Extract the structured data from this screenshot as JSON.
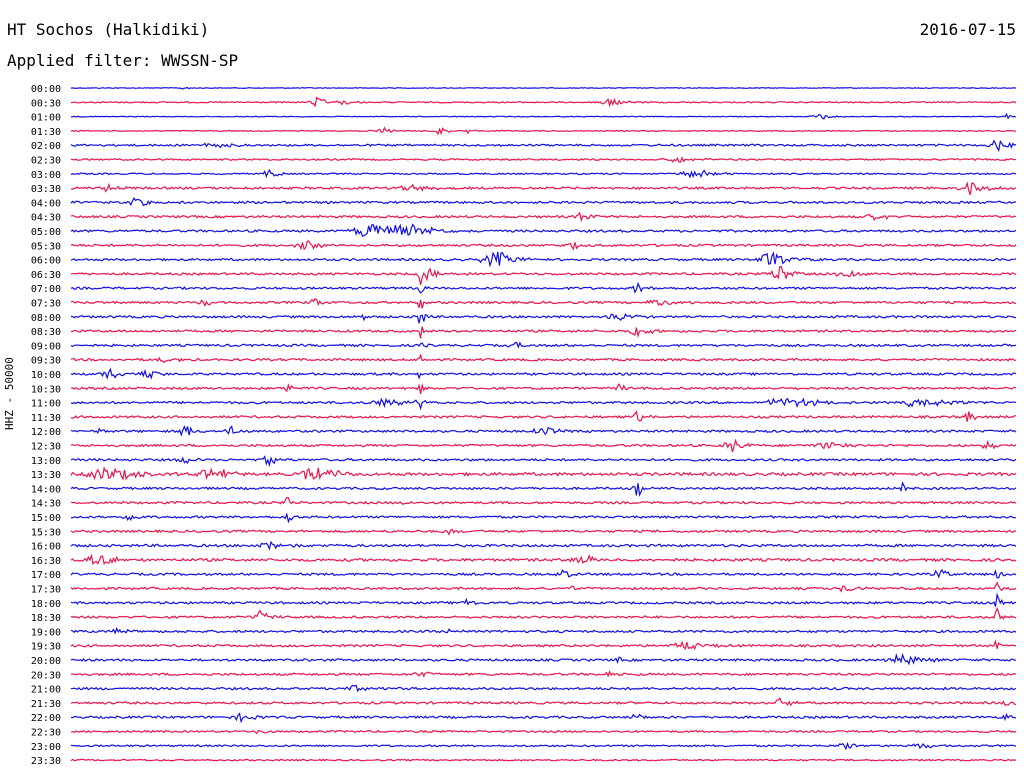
{
  "header": {
    "station": "HT Sochos (Halkidiki)",
    "date": "2016-07-15",
    "filter": "Applied filter: WWSSN-SP"
  },
  "axis": {
    "ylabel": "HHZ - 50000"
  },
  "colors": {
    "trace_a": "#1010e0",
    "trace_b": "#e8154a",
    "text": "#000000",
    "background": "#ffffff"
  },
  "chart_data": {
    "type": "line",
    "title": "HT Sochos (Halkidiki)",
    "subtitle": "Applied filter: WWSSN-SP",
    "ylabel": "HHZ - 50000",
    "grid": false,
    "rows": [
      {
        "time": "00:00",
        "color": "blue",
        "noise": 0.6,
        "events": [
          {
            "at": 0.12,
            "amp": 4,
            "w": 0.004
          }
        ]
      },
      {
        "time": "00:30",
        "color": "red",
        "noise": 1.0,
        "events": [
          {
            "at": 0.26,
            "amp": 5,
            "w": 0.012
          },
          {
            "at": 0.29,
            "amp": 3,
            "w": 0.01
          },
          {
            "at": 0.57,
            "amp": 4,
            "w": 0.015
          }
        ]
      },
      {
        "time": "01:00",
        "color": "blue",
        "noise": 0.6,
        "events": [
          {
            "at": 0.79,
            "amp": 5,
            "w": 0.01
          },
          {
            "at": 0.99,
            "amp": 3,
            "w": 0.004
          }
        ]
      },
      {
        "time": "01:30",
        "color": "red",
        "noise": 0.8,
        "events": [
          {
            "at": 0.33,
            "amp": 4,
            "w": 0.008
          },
          {
            "at": 0.39,
            "amp": 5,
            "w": 0.008
          },
          {
            "at": 0.42,
            "amp": 3,
            "w": 0.006
          }
        ]
      },
      {
        "time": "02:00",
        "color": "blue",
        "noise": 1.6,
        "events": [
          {
            "at": 0.15,
            "amp": 3,
            "w": 0.02
          },
          {
            "at": 0.98,
            "amp": 6,
            "w": 0.012
          }
        ]
      },
      {
        "time": "02:30",
        "color": "red",
        "noise": 1.3,
        "events": [
          {
            "at": 0.64,
            "amp": 3,
            "w": 0.02
          }
        ]
      },
      {
        "time": "03:00",
        "color": "blue",
        "noise": 1.2,
        "events": [
          {
            "at": 0.21,
            "amp": 6,
            "w": 0.008
          },
          {
            "at": 0.66,
            "amp": 5,
            "w": 0.02
          }
        ]
      },
      {
        "time": "03:30",
        "color": "red",
        "noise": 1.8,
        "events": [
          {
            "at": 0.04,
            "amp": 6,
            "w": 0.008
          },
          {
            "at": 0.36,
            "amp": 4,
            "w": 0.02
          },
          {
            "at": 0.95,
            "amp": 7,
            "w": 0.02
          }
        ]
      },
      {
        "time": "04:00",
        "color": "blue",
        "noise": 1.8,
        "events": [
          {
            "at": 0.07,
            "amp": 4,
            "w": 0.02
          }
        ]
      },
      {
        "time": "04:30",
        "color": "red",
        "noise": 1.8,
        "events": [
          {
            "at": 0.54,
            "amp": 6,
            "w": 0.008
          },
          {
            "at": 0.85,
            "amp": 4,
            "w": 0.012
          }
        ]
      },
      {
        "time": "05:00",
        "color": "blue",
        "noise": 1.8,
        "events": [
          {
            "at": 0.32,
            "amp": 9,
            "w": 0.03
          },
          {
            "at": 0.36,
            "amp": 6,
            "w": 0.03
          }
        ]
      },
      {
        "time": "05:30",
        "color": "red",
        "noise": 1.8,
        "events": [
          {
            "at": 0.25,
            "amp": 4,
            "w": 0.02
          },
          {
            "at": 0.53,
            "amp": 4,
            "w": 0.01
          }
        ]
      },
      {
        "time": "06:00",
        "color": "blue",
        "noise": 1.8,
        "events": [
          {
            "at": 0.45,
            "amp": 9,
            "w": 0.02
          },
          {
            "at": 0.74,
            "amp": 8,
            "w": 0.02
          }
        ]
      },
      {
        "time": "06:30",
        "color": "red",
        "noise": 1.8,
        "events": [
          {
            "at": 0.37,
            "amp": 14,
            "w": 0.004
          },
          {
            "at": 0.38,
            "amp": 7,
            "w": 0.012
          },
          {
            "at": 0.75,
            "amp": 10,
            "w": 0.012
          },
          {
            "at": 0.82,
            "amp": 6,
            "w": 0.015
          }
        ]
      },
      {
        "time": "07:00",
        "color": "blue",
        "noise": 1.8,
        "events": [
          {
            "at": 0.37,
            "amp": 12,
            "w": 0.003
          },
          {
            "at": 0.6,
            "amp": 7,
            "w": 0.008
          }
        ]
      },
      {
        "time": "07:30",
        "color": "red",
        "noise": 1.8,
        "events": [
          {
            "at": 0.14,
            "amp": 5,
            "w": 0.008
          },
          {
            "at": 0.26,
            "amp": 5,
            "w": 0.008
          },
          {
            "at": 0.37,
            "amp": 12,
            "w": 0.003
          },
          {
            "at": 0.62,
            "amp": 4,
            "w": 0.02
          }
        ]
      },
      {
        "time": "08:00",
        "color": "blue",
        "noise": 1.8,
        "events": [
          {
            "at": 0.31,
            "amp": 7,
            "w": 0.003
          },
          {
            "at": 0.37,
            "amp": 14,
            "w": 0.004
          },
          {
            "at": 0.58,
            "amp": 4,
            "w": 0.02
          }
        ]
      },
      {
        "time": "08:30",
        "color": "red",
        "noise": 1.8,
        "events": [
          {
            "at": 0.37,
            "amp": 8,
            "w": 0.004
          },
          {
            "at": 0.6,
            "amp": 7,
            "w": 0.01
          }
        ]
      },
      {
        "time": "09:00",
        "color": "blue",
        "noise": 1.8,
        "events": [
          {
            "at": 0.37,
            "amp": 10,
            "w": 0.003
          },
          {
            "at": 0.47,
            "amp": 4,
            "w": 0.008
          }
        ]
      },
      {
        "time": "09:30",
        "color": "red",
        "noise": 1.8,
        "events": [
          {
            "at": 0.37,
            "amp": 8,
            "w": 0.003
          },
          {
            "at": 0.1,
            "amp": 3,
            "w": 0.02
          }
        ]
      },
      {
        "time": "10:00",
        "color": "blue",
        "noise": 1.8,
        "events": [
          {
            "at": 0.04,
            "amp": 7,
            "w": 0.01
          },
          {
            "at": 0.08,
            "amp": 5,
            "w": 0.012
          },
          {
            "at": 0.37,
            "amp": 8,
            "w": 0.003
          }
        ]
      },
      {
        "time": "10:30",
        "color": "red",
        "noise": 1.8,
        "events": [
          {
            "at": 0.23,
            "amp": 8,
            "w": 0.004
          },
          {
            "at": 0.37,
            "amp": 6,
            "w": 0.003
          },
          {
            "at": 0.58,
            "amp": 4,
            "w": 0.01
          }
        ]
      },
      {
        "time": "11:00",
        "color": "blue",
        "noise": 1.8,
        "events": [
          {
            "at": 0.33,
            "amp": 5,
            "w": 0.02
          },
          {
            "at": 0.37,
            "amp": 6,
            "w": 0.01
          },
          {
            "at": 0.76,
            "amp": 6,
            "w": 0.03
          },
          {
            "at": 0.9,
            "amp": 6,
            "w": 0.03
          }
        ]
      },
      {
        "time": "11:30",
        "color": "red",
        "noise": 1.8,
        "events": [
          {
            "at": 0.6,
            "amp": 6,
            "w": 0.01
          },
          {
            "at": 0.95,
            "amp": 5,
            "w": 0.01
          }
        ]
      },
      {
        "time": "12:00",
        "color": "blue",
        "noise": 1.8,
        "events": [
          {
            "at": 0.03,
            "amp": 6,
            "w": 0.003
          },
          {
            "at": 0.12,
            "amp": 7,
            "w": 0.01
          },
          {
            "at": 0.17,
            "amp": 5,
            "w": 0.01
          },
          {
            "at": 0.5,
            "amp": 4,
            "w": 0.02
          }
        ]
      },
      {
        "time": "12:30",
        "color": "red",
        "noise": 1.8,
        "events": [
          {
            "at": 0.7,
            "amp": 7,
            "w": 0.012
          },
          {
            "at": 0.8,
            "amp": 4,
            "w": 0.02
          },
          {
            "at": 0.97,
            "amp": 5,
            "w": 0.008
          }
        ]
      },
      {
        "time": "13:00",
        "color": "blue",
        "noise": 1.8,
        "events": [
          {
            "at": 0.12,
            "amp": 4,
            "w": 0.01
          },
          {
            "at": 0.21,
            "amp": 7,
            "w": 0.008
          }
        ]
      },
      {
        "time": "13:30",
        "color": "red",
        "noise": 2.4,
        "events": [
          {
            "at": 0.04,
            "amp": 8,
            "w": 0.03
          },
          {
            "at": 0.15,
            "amp": 7,
            "w": 0.02
          },
          {
            "at": 0.26,
            "amp": 10,
            "w": 0.02
          }
        ]
      },
      {
        "time": "14:00",
        "color": "blue",
        "noise": 1.8,
        "events": [
          {
            "at": 0.6,
            "amp": 8,
            "w": 0.008
          },
          {
            "at": 0.88,
            "amp": 6,
            "w": 0.003
          }
        ]
      },
      {
        "time": "14:30",
        "color": "red",
        "noise": 1.8,
        "events": [
          {
            "at": 0.23,
            "amp": 7,
            "w": 0.005
          },
          {
            "at": 0.35,
            "amp": 6,
            "w": 0.004
          }
        ]
      },
      {
        "time": "15:00",
        "color": "blue",
        "noise": 1.8,
        "events": [
          {
            "at": 0.06,
            "amp": 5,
            "w": 0.01
          },
          {
            "at": 0.23,
            "amp": 6,
            "w": 0.006
          }
        ]
      },
      {
        "time": "15:30",
        "color": "red",
        "noise": 1.8,
        "events": [
          {
            "at": 0.4,
            "amp": 4,
            "w": 0.008
          }
        ]
      },
      {
        "time": "16:00",
        "color": "blue",
        "noise": 2.0,
        "events": [
          {
            "at": 0.21,
            "amp": 5,
            "w": 0.015
          }
        ]
      },
      {
        "time": "16:30",
        "color": "red",
        "noise": 2.2,
        "events": [
          {
            "at": 0.03,
            "amp": 6,
            "w": 0.02
          },
          {
            "at": 0.54,
            "amp": 5,
            "w": 0.02
          }
        ]
      },
      {
        "time": "17:00",
        "color": "blue",
        "noise": 1.8,
        "events": [
          {
            "at": 0.52,
            "amp": 5,
            "w": 0.01
          },
          {
            "at": 0.92,
            "amp": 5,
            "w": 0.01
          },
          {
            "at": 0.98,
            "amp": 6,
            "w": 0.006
          }
        ]
      },
      {
        "time": "17:30",
        "color": "red",
        "noise": 1.8,
        "events": [
          {
            "at": 0.53,
            "amp": 7,
            "w": 0.003
          },
          {
            "at": 0.82,
            "amp": 4,
            "w": 0.01
          },
          {
            "at": 0.98,
            "amp": 10,
            "w": 0.003
          }
        ]
      },
      {
        "time": "18:00",
        "color": "blue",
        "noise": 1.8,
        "events": [
          {
            "at": 0.42,
            "amp": 4,
            "w": 0.01
          },
          {
            "at": 0.98,
            "amp": 9,
            "w": 0.004
          }
        ]
      },
      {
        "time": "18:30",
        "color": "red",
        "noise": 1.8,
        "events": [
          {
            "at": 0.2,
            "amp": 7,
            "w": 0.01
          },
          {
            "at": 0.98,
            "amp": 14,
            "w": 0.004
          }
        ]
      },
      {
        "time": "19:00",
        "color": "blue",
        "noise": 1.8,
        "events": [
          {
            "at": 0.05,
            "amp": 4,
            "w": 0.01
          },
          {
            "at": 0.4,
            "amp": 4,
            "w": 0.01
          }
        ]
      },
      {
        "time": "19:30",
        "color": "red",
        "noise": 1.8,
        "events": [
          {
            "at": 0.65,
            "amp": 5,
            "w": 0.02
          },
          {
            "at": 0.98,
            "amp": 10,
            "w": 0.003
          }
        ]
      },
      {
        "time": "20:00",
        "color": "blue",
        "noise": 1.8,
        "events": [
          {
            "at": 0.58,
            "amp": 6,
            "w": 0.004
          },
          {
            "at": 0.88,
            "amp": 7,
            "w": 0.02
          }
        ]
      },
      {
        "time": "20:30",
        "color": "red",
        "noise": 1.8,
        "events": [
          {
            "at": 0.37,
            "amp": 4,
            "w": 0.01
          },
          {
            "at": 0.57,
            "amp": 5,
            "w": 0.004
          }
        ]
      },
      {
        "time": "21:00",
        "color": "blue",
        "noise": 1.8,
        "events": [
          {
            "at": 0.3,
            "amp": 3,
            "w": 0.02
          }
        ]
      },
      {
        "time": "21:30",
        "color": "red",
        "noise": 1.8,
        "events": [
          {
            "at": 0.75,
            "amp": 6,
            "w": 0.012
          },
          {
            "at": 0.99,
            "amp": 4,
            "w": 0.006
          }
        ]
      },
      {
        "time": "22:00",
        "color": "blue",
        "noise": 1.8,
        "events": [
          {
            "at": 0.18,
            "amp": 4,
            "w": 0.015
          },
          {
            "at": 0.6,
            "amp": 4,
            "w": 0.01
          },
          {
            "at": 0.99,
            "amp": 4,
            "w": 0.006
          }
        ]
      },
      {
        "time": "22:30",
        "color": "red",
        "noise": 1.5,
        "events": [
          {
            "at": 0.2,
            "amp": 3,
            "w": 0.01
          }
        ]
      },
      {
        "time": "23:00",
        "color": "blue",
        "noise": 1.4,
        "events": [
          {
            "at": 0.82,
            "amp": 4,
            "w": 0.012
          },
          {
            "at": 0.9,
            "amp": 4,
            "w": 0.012
          }
        ]
      },
      {
        "time": "23:30",
        "color": "red",
        "noise": 1.2,
        "events": []
      }
    ]
  }
}
